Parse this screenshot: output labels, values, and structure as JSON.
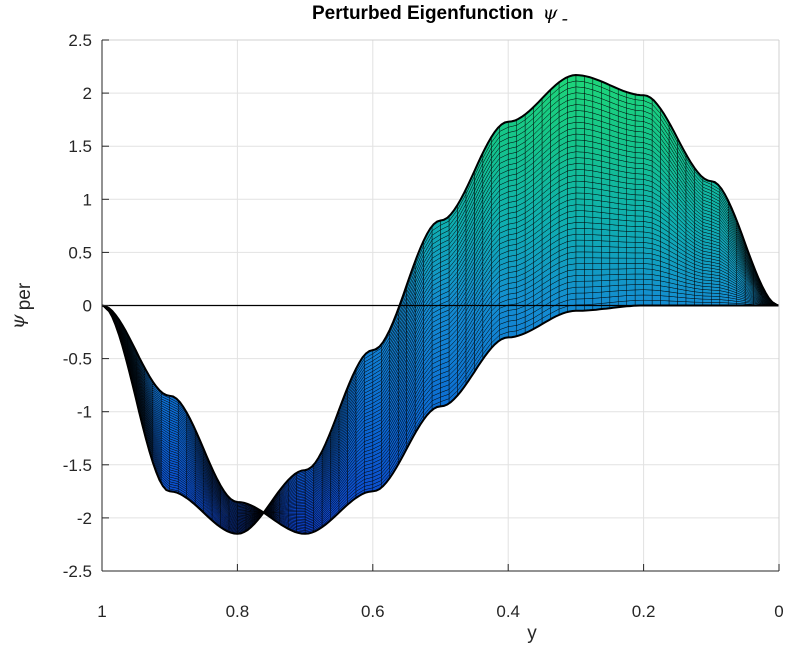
{
  "chart_data": {
    "type": "surface",
    "title": "Perturbed Eigenfunction",
    "title_symbol": "ψ",
    "title_subscript": "-",
    "xlabel": "y",
    "ylabel_symbol": "ψ",
    "ylabel_subscript": "per",
    "xlim": [
      0,
      1
    ],
    "x_reversed": true,
    "ylim": [
      -2.5,
      2.5
    ],
    "xticks": [
      1,
      0.8,
      0.6,
      0.4,
      0.2,
      0
    ],
    "xtick_labels": [
      "1",
      "0.8",
      "0.6",
      "0.4",
      "0.2",
      "0"
    ],
    "yticks": [
      2.5,
      2,
      1.5,
      1,
      0.5,
      0,
      -0.5,
      -1,
      -1.5,
      -2,
      -2.5
    ],
    "ytick_labels": [
      "2.5",
      "2",
      "1.5",
      "1",
      "0.5",
      "0",
      "-0.5",
      "-1",
      "-1.5",
      "-2",
      "-2.5"
    ],
    "grid": true,
    "colormap": "parula",
    "series": [
      {
        "x": [
          0,
          0.1,
          0.2,
          0.3,
          0.4,
          0.5,
          0.6,
          0.7,
          0.8,
          0.9,
          1.0
        ],
        "values": [
          0,
          1.17,
          1.98,
          2.17,
          1.73,
          0.8,
          -0.42,
          -1.55,
          -2.15,
          -1.75,
          0
        ]
      },
      {
        "x": [
          0,
          0.1,
          0.2,
          0.3,
          0.4,
          0.5,
          0.6,
          0.7,
          0.8,
          0.9,
          1.0
        ],
        "values": [
          0,
          0,
          0,
          -0.05,
          -0.3,
          -0.95,
          -1.75,
          -2.15,
          -1.85,
          -0.85,
          0
        ]
      }
    ]
  }
}
